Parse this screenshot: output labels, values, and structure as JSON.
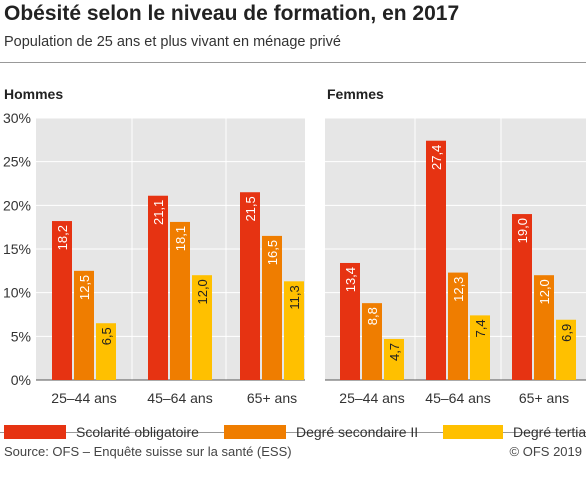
{
  "title": "Obésité selon le niveau de formation, en 2017",
  "subtitle": "Population de 25 ans et plus vivant en ménage privé",
  "source": "Source: OFS – Enquête suisse sur la santé (ESS)",
  "copyright": "© OFS 2019",
  "colors": {
    "Scolarité obligatoire": "#e63312",
    "Degré secondaire II": "#ef7d00",
    "Degré tertiaire": "#ffc000",
    "grid": "#c8c8c8",
    "panel_bg": "#e6e6e6"
  },
  "chart_data": [
    {
      "type": "bar",
      "title": "Hommes",
      "categories": [
        "25–44 ans",
        "45–64 ans",
        "65+ ans"
      ],
      "series": [
        {
          "name": "Scolarité obligatoire",
          "values": [
            18.2,
            21.1,
            21.5
          ],
          "labels": [
            "18,2",
            "21,1",
            "21,5"
          ]
        },
        {
          "name": "Degré secondaire II",
          "values": [
            12.5,
            18.1,
            16.5
          ],
          "labels": [
            "12,5",
            "18,1",
            "16,5"
          ]
        },
        {
          "name": "Degré tertiaire",
          "values": [
            6.5,
            12.0,
            11.3
          ],
          "labels": [
            "6,5",
            "12,0",
            "11,3"
          ]
        }
      ],
      "ylim": [
        0,
        30
      ],
      "yticks": [
        "0%",
        "5%",
        "10%",
        "15%",
        "20%",
        "25%",
        "30%"
      ],
      "grid": true
    },
    {
      "type": "bar",
      "title": "Femmes",
      "categories": [
        "25–44 ans",
        "45–64 ans",
        "65+ ans"
      ],
      "series": [
        {
          "name": "Scolarité obligatoire",
          "values": [
            13.4,
            27.4,
            19.0
          ],
          "labels": [
            "13,4",
            "27,4",
            "19,0"
          ]
        },
        {
          "name": "Degré secondaire II",
          "values": [
            8.8,
            12.3,
            12.0
          ],
          "labels": [
            "8,8",
            "12,3",
            "12,0"
          ]
        },
        {
          "name": "Degré tertiaire",
          "values": [
            4.7,
            7.4,
            6.9
          ],
          "labels": [
            "4,7",
            "7,4",
            "6,9"
          ]
        }
      ],
      "ylim": [
        0,
        30
      ],
      "grid": true
    }
  ],
  "legend": [
    "Scolarité obligatoire",
    "Degré secondaire II",
    "Degré tertiaire"
  ]
}
